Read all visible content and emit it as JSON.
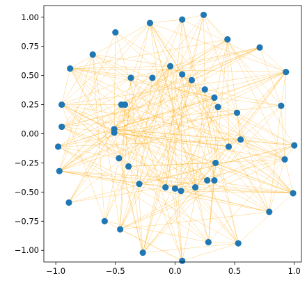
{
  "chart_data": {
    "type": "scatter",
    "title": "",
    "xlabel": "",
    "ylabel": "",
    "xlim": [
      -1.1,
      1.06
    ],
    "ylim": [
      -1.1,
      1.1
    ],
    "xticks": [
      -1.0,
      -0.5,
      0.0,
      0.5,
      1.0
    ],
    "xtick_labels": [
      "−1.0",
      "−0.5",
      "0.0",
      "0.5",
      "1.0"
    ],
    "yticks": [
      1.0,
      0.75,
      0.5,
      0.25,
      0.0,
      -0.25,
      -0.5,
      -0.75,
      -1.0
    ],
    "ytick_labels": [
      "1.00",
      "0.75",
      "0.50",
      "0.25",
      "0.00",
      "−0.25",
      "−0.50",
      "−0.75",
      "−1.00"
    ],
    "grid": false,
    "colors": {
      "points": "#1f77b4",
      "edges": "#ffa500",
      "axes": "#000000"
    },
    "points": [
      {
        "x": 0.24,
        "y": 1.02
      },
      {
        "x": 0.06,
        "y": 0.98
      },
      {
        "x": -0.21,
        "y": 0.95
      },
      {
        "x": -0.5,
        "y": 0.87
      },
      {
        "x": 0.44,
        "y": 0.81
      },
      {
        "x": 0.71,
        "y": 0.74
      },
      {
        "x": -0.69,
        "y": 0.68
      },
      {
        "x": -0.88,
        "y": 0.56
      },
      {
        "x": 0.93,
        "y": 0.53
      },
      {
        "x": -0.04,
        "y": 0.58
      },
      {
        "x": 0.06,
        "y": 0.51
      },
      {
        "x": 0.14,
        "y": 0.46
      },
      {
        "x": -0.37,
        "y": 0.48
      },
      {
        "x": -0.19,
        "y": 0.48
      },
      {
        "x": 0.25,
        "y": 0.38
      },
      {
        "x": 0.33,
        "y": 0.31
      },
      {
        "x": 0.36,
        "y": 0.23
      },
      {
        "x": 0.52,
        "y": 0.18
      },
      {
        "x": 0.89,
        "y": 0.24
      },
      {
        "x": -0.95,
        "y": 0.25
      },
      {
        "x": -0.45,
        "y": 0.25
      },
      {
        "x": -0.42,
        "y": 0.25
      },
      {
        "x": -0.95,
        "y": 0.06
      },
      {
        "x": -0.51,
        "y": 0.04
      },
      {
        "x": -0.51,
        "y": 0.01
      },
      {
        "x": -0.98,
        "y": -0.11
      },
      {
        "x": 1.0,
        "y": -0.1
      },
      {
        "x": 0.55,
        "y": -0.05
      },
      {
        "x": 0.45,
        "y": -0.11
      },
      {
        "x": 0.92,
        "y": -0.22
      },
      {
        "x": -0.47,
        "y": -0.21
      },
      {
        "x": -0.39,
        "y": -0.28
      },
      {
        "x": 0.34,
        "y": -0.25
      },
      {
        "x": -0.97,
        "y": -0.32
      },
      {
        "x": -0.3,
        "y": -0.43
      },
      {
        "x": -0.08,
        "y": -0.46
      },
      {
        "x": 0.0,
        "y": -0.47
      },
      {
        "x": 0.05,
        "y": -0.49
      },
      {
        "x": 0.17,
        "y": -0.46
      },
      {
        "x": 0.27,
        "y": -0.4
      },
      {
        "x": 0.33,
        "y": -0.4
      },
      {
        "x": 0.99,
        "y": -0.51
      },
      {
        "x": -0.89,
        "y": -0.59
      },
      {
        "x": 0.79,
        "y": -0.67
      },
      {
        "x": -0.59,
        "y": -0.75
      },
      {
        "x": -0.46,
        "y": -0.82
      },
      {
        "x": 0.28,
        "y": -0.93
      },
      {
        "x": 0.53,
        "y": -0.94
      },
      {
        "x": -0.27,
        "y": -1.02
      },
      {
        "x": 0.06,
        "y": -1.09
      }
    ]
  }
}
